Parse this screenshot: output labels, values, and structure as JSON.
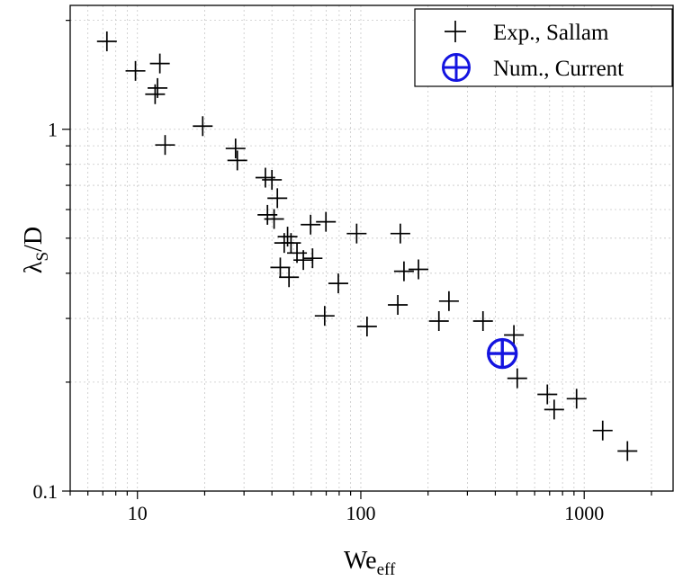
{
  "chart_data": {
    "type": "scatter",
    "xscale": "log",
    "yscale": "log",
    "xlim": [
      5,
      2500
    ],
    "ylim": [
      0.1,
      2.2
    ],
    "grid": true,
    "x_ticks": [
      {
        "value": 10,
        "label": "10"
      },
      {
        "value": 100,
        "label": "100"
      },
      {
        "value": 1000,
        "label": "1000"
      }
    ],
    "y_ticks": [
      {
        "value": 0.1,
        "label": "0.1"
      },
      {
        "value": 1,
        "label": "1"
      }
    ],
    "xlabel": {
      "main": "We",
      "sub": "eff"
    },
    "ylabel": {
      "main": "λ",
      "sub": "S",
      "tail": "/D"
    },
    "legend_position": "top-right",
    "series": [
      {
        "name": "Exp., Sallam",
        "marker": "plus",
        "color": "#000000",
        "points": [
          [
            7.3,
            1.75
          ],
          [
            9.8,
            1.45
          ],
          [
            12.6,
            1.52
          ],
          [
            12.3,
            1.3
          ],
          [
            12.0,
            1.25
          ],
          [
            13.3,
            0.905
          ],
          [
            19.6,
            1.02
          ],
          [
            27.5,
            0.885
          ],
          [
            28.0,
            0.82
          ],
          [
            37.4,
            0.735
          ],
          [
            40.0,
            0.725
          ],
          [
            42.3,
            0.645
          ],
          [
            38.2,
            0.58
          ],
          [
            40.9,
            0.565
          ],
          [
            47.0,
            0.505
          ],
          [
            45.4,
            0.485
          ],
          [
            48.7,
            0.485
          ],
          [
            51.8,
            0.455
          ],
          [
            55.3,
            0.435
          ],
          [
            60.8,
            0.44
          ],
          [
            59.6,
            0.545
          ],
          [
            69.8,
            0.555
          ],
          [
            43.6,
            0.415
          ],
          [
            47.7,
            0.39
          ],
          [
            79.3,
            0.375
          ],
          [
            95.8,
            0.515
          ],
          [
            150.3,
            0.515
          ],
          [
            156.0,
            0.405
          ],
          [
            181.2,
            0.41
          ],
          [
            146.4,
            0.327
          ],
          [
            68.9,
            0.305
          ],
          [
            106.6,
            0.285
          ],
          [
            223.6,
            0.295
          ],
          [
            248.0,
            0.335
          ],
          [
            352.3,
            0.295
          ],
          [
            484.5,
            0.27
          ],
          [
            501.5,
            0.205
          ],
          [
            683.9,
            0.185
          ],
          [
            733.7,
            0.168
          ],
          [
            924.3,
            0.18
          ],
          [
            1209.9,
            0.147
          ],
          [
            1561.5,
            0.129
          ]
        ]
      },
      {
        "name": "Num., Current",
        "marker": "circle-plus",
        "color": "#1414e0",
        "points": [
          [
            430,
            0.24
          ]
        ]
      }
    ]
  }
}
